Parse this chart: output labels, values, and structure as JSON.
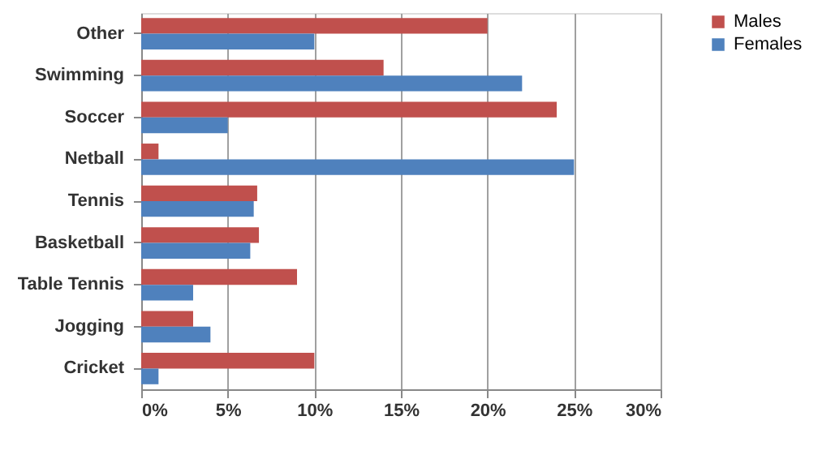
{
  "chart_data": {
    "type": "bar",
    "orientation": "horizontal",
    "categories": [
      "Other",
      "Swimming",
      "Soccer",
      "Netball",
      "Tennis",
      "Basketball",
      "Table Tennis",
      "Jogging",
      "Cricket"
    ],
    "series": [
      {
        "name": "Males",
        "color": "#c0504d",
        "values": [
          20,
          14,
          24,
          1,
          6.7,
          6.8,
          9,
          3,
          10
        ]
      },
      {
        "name": "Females",
        "color": "#4f81bd",
        "values": [
          10,
          22,
          5,
          25,
          6.5,
          6.3,
          3,
          4,
          1
        ]
      }
    ],
    "xlim": [
      0,
      30
    ],
    "xticks": [
      {
        "value": 0,
        "label": "0%"
      },
      {
        "value": 5,
        "label": "5%"
      },
      {
        "value": 10,
        "label": "10%"
      },
      {
        "value": 15,
        "label": "15%"
      },
      {
        "value": 20,
        "label": "20%"
      },
      {
        "value": 25,
        "label": "25%"
      },
      {
        "value": 30,
        "label": "30%"
      }
    ],
    "grid": "x",
    "legend": "right"
  }
}
